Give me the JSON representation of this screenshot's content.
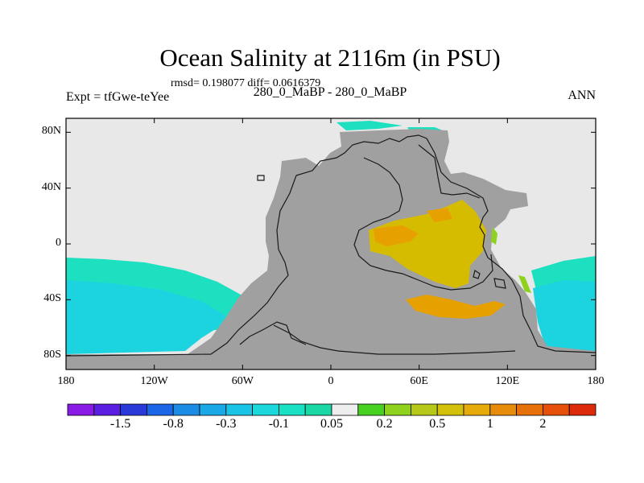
{
  "title": "Ocean Salinity at 2116m (in PSU)",
  "subtitle": "rmsd= 0.198077 diff= 0.0616379",
  "left_label": "Expt = tfGwe-teYee",
  "center_label": "280_0_MaBP - 280_0_MaBP",
  "right_label": "ANN",
  "colors": {
    "background_missing": "#e8e8e8",
    "land": "#a0a0a0",
    "coastline": "#1a1a1a"
  },
  "axes": {
    "lon_range": [
      -180,
      180
    ],
    "lat_range": [
      -90,
      90
    ],
    "lat_ticks": [
      {
        "value": 80,
        "label": "80N"
      },
      {
        "value": 40,
        "label": "40N"
      },
      {
        "value": 0,
        "label": "0"
      },
      {
        "value": -40,
        "label": "40S"
      },
      {
        "value": -80,
        "label": "80S"
      }
    ],
    "lon_ticks": [
      {
        "value": -180,
        "label": "180"
      },
      {
        "value": -120,
        "label": "120W"
      },
      {
        "value": -60,
        "label": "60W"
      },
      {
        "value": 0,
        "label": "0"
      },
      {
        "value": 60,
        "label": "60E"
      },
      {
        "value": 120,
        "label": "120E"
      },
      {
        "value": 180,
        "label": "180"
      }
    ]
  },
  "colorbar": {
    "colors": [
      "#8a1ae6",
      "#5a1fe0",
      "#2a3ad8",
      "#1a66e6",
      "#1a8ce6",
      "#1aa8e6",
      "#1ac4e6",
      "#1ad8dc",
      "#1ae0c4",
      "#1ad8a6",
      "#eeeeee",
      "#46d21e",
      "#8ed21e",
      "#b6c81a",
      "#d2c00a",
      "#e6aa0a",
      "#e68c0a",
      "#e6700a",
      "#e6500a",
      "#dc2a0a"
    ],
    "labels": [
      {
        "after_box": 2,
        "label": "-1.5"
      },
      {
        "after_box": 4,
        "label": "-0.8"
      },
      {
        "after_box": 6,
        "label": "-0.3"
      },
      {
        "after_box": 8,
        "label": "-0.1"
      },
      {
        "after_box": 10,
        "label": "0.05"
      },
      {
        "after_box": 12,
        "label": "0.2"
      },
      {
        "after_box": 14,
        "label": "0.5"
      },
      {
        "after_box": 16,
        "label": "1"
      },
      {
        "after_box": 18,
        "label": "2"
      }
    ]
  },
  "fields": [
    {
      "name": "pacific-south-cyan-band",
      "value_class": "-0.1",
      "color": "#1ce0c0"
    },
    {
      "name": "pacific-south-deep-cyan",
      "value_class": "-0.3",
      "color": "#1cd4e0"
    },
    {
      "name": "indian-ocean-positive-anomaly",
      "value_class": "0.5",
      "color": "#d6bc00"
    },
    {
      "name": "southern-indian-orange-band",
      "value_class": "1",
      "color": "#e6a000"
    },
    {
      "name": "arctic-cyan-strip",
      "value_class": "-0.1",
      "color": "#1ce0c0"
    }
  ]
}
